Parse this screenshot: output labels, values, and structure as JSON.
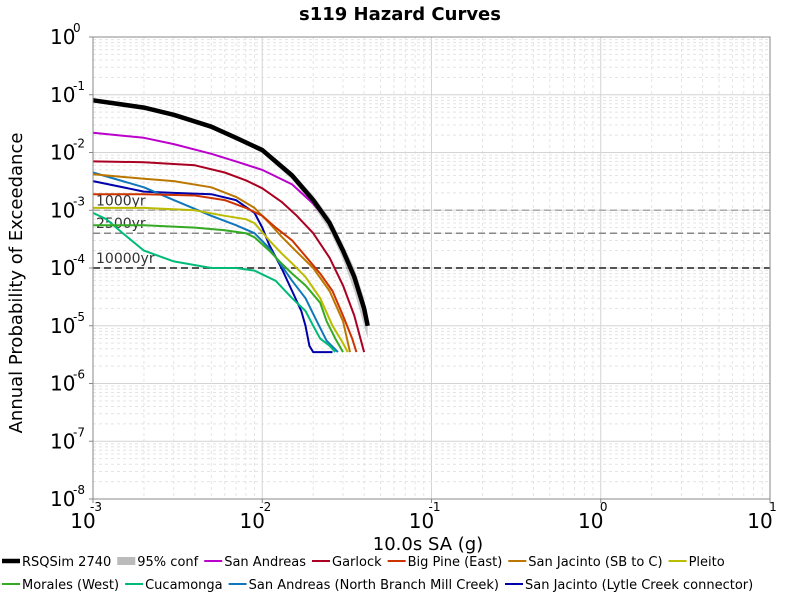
{
  "chart_data": {
    "type": "line",
    "title": "s119 Hazard Curves",
    "xlabel": "10.0s SA (g)",
    "ylabel": "Annual Probability of Exceedance",
    "x_scale": "log",
    "y_scale": "log",
    "xlim": [
      0.001,
      10
    ],
    "ylim": [
      1e-08,
      1
    ],
    "x_ticks": [
      {
        "base": "10",
        "exp": "-3"
      },
      {
        "base": "10",
        "exp": "-2"
      },
      {
        "base": "10",
        "exp": "-1"
      },
      {
        "base": "10",
        "exp": "0"
      },
      {
        "base": "10",
        "exp": "1"
      }
    ],
    "y_ticks": [
      {
        "base": "10",
        "exp": "0"
      },
      {
        "base": "10",
        "exp": "-1"
      },
      {
        "base": "10",
        "exp": "-2"
      },
      {
        "base": "10",
        "exp": "-3"
      },
      {
        "base": "10",
        "exp": "-4"
      },
      {
        "base": "10",
        "exp": "-5"
      },
      {
        "base": "10",
        "exp": "-6"
      },
      {
        "base": "10",
        "exp": "-7"
      },
      {
        "base": "10",
        "exp": "-8"
      }
    ],
    "grid": true,
    "legend_position": "bottom",
    "reference_lines": [
      {
        "label": "1000yr",
        "y": 0.001
      },
      {
        "label": "2500yr",
        "y": 0.0004
      },
      {
        "label": "10000yr",
        "y": 0.0001
      }
    ],
    "series": [
      {
        "name": "RSQSim 2740",
        "color": "#000000",
        "kind": "main",
        "x": [
          0.001,
          0.002,
          0.003,
          0.005,
          0.007,
          0.01,
          0.015,
          0.02,
          0.025,
          0.03,
          0.035,
          0.04,
          0.042
        ],
        "y": [
          0.08,
          0.06,
          0.045,
          0.028,
          0.018,
          0.011,
          0.004,
          0.0015,
          0.0006,
          0.0002,
          7e-05,
          2e-05,
          1e-05
        ]
      },
      {
        "name": "95% conf",
        "color": "#bbbbbb",
        "kind": "conf",
        "x": [
          0.001,
          0.002,
          0.003,
          0.005,
          0.007,
          0.01,
          0.015,
          0.02,
          0.025,
          0.03,
          0.035,
          0.04,
          0.042
        ],
        "y_low": [
          0.076,
          0.057,
          0.042,
          0.026,
          0.0165,
          0.0098,
          0.0034,
          0.0012,
          0.00045,
          0.00014,
          4e-05,
          1e-05,
          6e-06
        ],
        "y_high": [
          0.084,
          0.063,
          0.048,
          0.03,
          0.0195,
          0.0122,
          0.0046,
          0.0018,
          0.00075,
          0.00026,
          0.0001,
          3e-05,
          1.5e-05
        ]
      },
      {
        "name": "San Andreas",
        "color": "#bb00cc",
        "kind": "line",
        "x": [
          0.001,
          0.002,
          0.003,
          0.005,
          0.007,
          0.01,
          0.015,
          0.02,
          0.025,
          0.03,
          0.035,
          0.04,
          0.042
        ],
        "y": [
          0.022,
          0.018,
          0.014,
          0.0095,
          0.007,
          0.005,
          0.0028,
          0.0013,
          0.0006,
          0.0002,
          7e-05,
          2e-05,
          1.2e-05
        ]
      },
      {
        "name": "Garlock",
        "color": "#aa0022",
        "kind": "line",
        "x": [
          0.001,
          0.002,
          0.004,
          0.006,
          0.008,
          0.01,
          0.013,
          0.016,
          0.02,
          0.025,
          0.03,
          0.035,
          0.04
        ],
        "y": [
          0.007,
          0.0068,
          0.006,
          0.0045,
          0.0033,
          0.0024,
          0.0014,
          0.0008,
          0.0004,
          0.00015,
          5e-05,
          1.5e-05,
          3.5e-06
        ]
      },
      {
        "name": "Big Pine (East)",
        "color": "#cc3300",
        "kind": "line",
        "x": [
          0.001,
          0.002,
          0.004,
          0.006,
          0.008,
          0.01,
          0.012,
          0.015,
          0.018,
          0.022,
          0.026,
          0.03,
          0.034,
          0.036
        ],
        "y": [
          0.0019,
          0.0019,
          0.0018,
          0.0015,
          0.0011,
          0.0008,
          0.0005,
          0.0003,
          0.00016,
          8e-05,
          4e-05,
          1.5e-05,
          6e-06,
          3.5e-06
        ]
      },
      {
        "name": "San Jacinto (SB to C)",
        "color": "#bb7700",
        "kind": "line",
        "x": [
          0.001,
          0.002,
          0.003,
          0.005,
          0.007,
          0.009,
          0.011,
          0.013,
          0.016,
          0.02,
          0.025,
          0.03,
          0.033
        ],
        "y": [
          0.0042,
          0.0035,
          0.0032,
          0.0025,
          0.0017,
          0.0011,
          0.0006,
          0.00035,
          0.00019,
          0.0001,
          4e-05,
          1.2e-05,
          3.5e-06
        ]
      },
      {
        "name": "Pleito",
        "color": "#bbbb00",
        "kind": "line",
        "x": [
          0.001,
          0.002,
          0.004,
          0.006,
          0.008,
          0.009,
          0.011,
          0.013,
          0.015,
          0.018,
          0.022,
          0.026,
          0.03,
          0.032
        ],
        "y": [
          0.0011,
          0.0011,
          0.001,
          0.0008,
          0.0007,
          0.0006,
          0.0003,
          0.00018,
          0.00012,
          7e-05,
          3e-05,
          1e-05,
          5e-06,
          3.5e-06
        ]
      },
      {
        "name": "Morales (West)",
        "color": "#33aa22",
        "kind": "line",
        "x": [
          0.001,
          0.002,
          0.004,
          0.006,
          0.008,
          0.009,
          0.011,
          0.013,
          0.015,
          0.018,
          0.022,
          0.024,
          0.027,
          0.03
        ],
        "y": [
          0.00055,
          0.00055,
          0.0005,
          0.00045,
          0.0004,
          0.00034,
          0.0002,
          0.00012,
          8e-05,
          5e-05,
          2.5e-05,
          1.2e-05,
          6e-06,
          3.5e-06
        ]
      },
      {
        "name": "Cucamonga",
        "color": "#00bb77",
        "kind": "line",
        "x": [
          0.001,
          0.0012,
          0.0015,
          0.002,
          0.003,
          0.005,
          0.007,
          0.009,
          0.012,
          0.015,
          0.018,
          0.02,
          0.022,
          0.025,
          0.027
        ],
        "y": [
          0.0009,
          0.0007,
          0.0004,
          0.0002,
          0.00013,
          0.0001,
          0.0001,
          9e-05,
          6e-05,
          3e-05,
          1.8e-05,
          1e-05,
          6e-06,
          4.5e-06,
          3.5e-06
        ]
      },
      {
        "name": "San Andreas (North Branch Mill Creek)",
        "color": "#1177bb",
        "kind": "line",
        "x": [
          0.001,
          0.002,
          0.003,
          0.005,
          0.007,
          0.009,
          0.011,
          0.013,
          0.015,
          0.018,
          0.021,
          0.024,
          0.028
        ],
        "y": [
          0.0045,
          0.0025,
          0.0015,
          0.0008,
          0.00055,
          0.0004,
          0.00022,
          0.00011,
          6e-05,
          3e-05,
          1.2e-05,
          5.5e-06,
          3.5e-06
        ]
      },
      {
        "name": "San Jacinto (Lytle Creek connector)",
        "color": "#0000aa",
        "kind": "line",
        "x": [
          0.001,
          0.002,
          0.003,
          0.005,
          0.007,
          0.009,
          0.01,
          0.011,
          0.013,
          0.015,
          0.017,
          0.018,
          0.019,
          0.02,
          0.024,
          0.026
        ],
        "y": [
          0.0032,
          0.0021,
          0.002,
          0.0019,
          0.0015,
          0.0009,
          0.0005,
          0.00025,
          0.0001,
          4e-05,
          1.8e-05,
          1e-05,
          4.5e-06,
          3.5e-06,
          3.5e-06,
          3.5e-06
        ]
      }
    ]
  }
}
